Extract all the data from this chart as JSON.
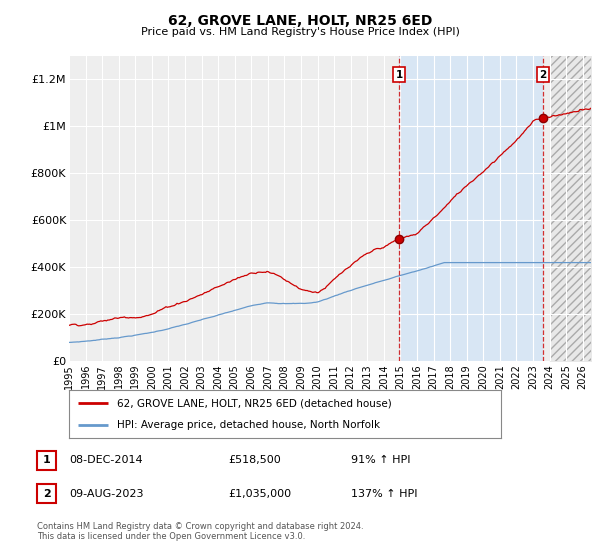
{
  "title": "62, GROVE LANE, HOLT, NR25 6ED",
  "subtitle": "Price paid vs. HM Land Registry's House Price Index (HPI)",
  "ylabel_ticks": [
    "£0",
    "£200K",
    "£400K",
    "£600K",
    "£800K",
    "£1M",
    "£1.2M"
  ],
  "ytick_values": [
    0,
    200000,
    400000,
    600000,
    800000,
    1000000,
    1200000
  ],
  "ylim": [
    0,
    1300000
  ],
  "xlim_start": 1995.0,
  "xlim_end": 2026.5,
  "red_line_color": "#cc0000",
  "blue_line_color": "#6699cc",
  "vline_color": "#cc0000",
  "shade_color": "#d0e4f7",
  "hatch_color": "#cccccc",
  "marker1_x": 2014.92,
  "marker1_y": 518500,
  "marker2_x": 2023.61,
  "marker2_y": 1035000,
  "annotation1_label": "1",
  "annotation2_label": "2",
  "legend_line1": "62, GROVE LANE, HOLT, NR25 6ED (detached house)",
  "legend_line2": "HPI: Average price, detached house, North Norfolk",
  "table_row1": [
    "1",
    "08-DEC-2014",
    "£518,500",
    "91% ↑ HPI"
  ],
  "table_row2": [
    "2",
    "09-AUG-2023",
    "£1,035,000",
    "137% ↑ HPI"
  ],
  "footer": "Contains HM Land Registry data © Crown copyright and database right 2024.\nThis data is licensed under the Open Government Licence v3.0.",
  "background_color": "#ffffff",
  "plot_bg_color": "#eeeeee",
  "grid_color": "#ffffff"
}
